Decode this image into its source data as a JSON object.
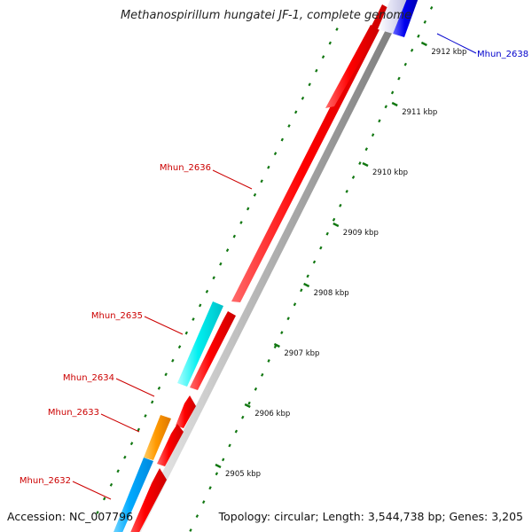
{
  "title": "Methanospirillum hungatei JF-1, complete genome",
  "footer": {
    "accession": "Accession: NC_007796",
    "summary": "Topology: circular; Length: 3,544,738 bp; Genes: 3,205"
  },
  "colors": {
    "forward_gene": "#ff0000",
    "reverse_gene_cyan": "#00eeee",
    "reverse_gene_blue": "#00aaff",
    "reverse_gene_orange": "#ff9900",
    "label_red": "#cc0000",
    "label_blue": "#0000cc",
    "tick": "#117711"
  },
  "ticks": [
    "2905 kbp",
    "2906 kbp",
    "2907 kbp",
    "2908 kbp",
    "2909 kbp",
    "2910 kbp",
    "2911 kbp",
    "2912 kbp"
  ],
  "genes": [
    {
      "name": "Mhun_2632",
      "label_color": "#cc0000"
    },
    {
      "name": "Mhun_2633",
      "label_color": "#cc0000"
    },
    {
      "name": "Mhun_2634",
      "label_color": "#cc0000"
    },
    {
      "name": "Mhun_2635",
      "label_color": "#cc0000"
    },
    {
      "name": "Mhun_2636",
      "label_color": "#cc0000"
    },
    {
      "name": "Mhun_2638",
      "label_color": "#0000cc"
    }
  ]
}
